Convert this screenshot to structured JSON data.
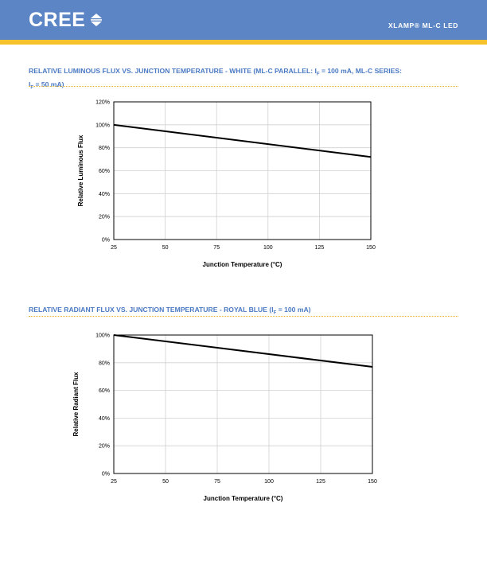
{
  "header": {
    "logo_text": "CREE",
    "product_label": "XLAMP® ML-C LED",
    "colors": {
      "band": "#5b85c5",
      "gold": "#f6c22b",
      "title": "#4a79c3"
    }
  },
  "chart_data": [
    {
      "type": "line",
      "title_parts": [
        "RELATIVE LUMINOUS FLUX VS. JUNCTION TEMPERATURE - WHITE (ML-C PARALLEL: I",
        "F",
        " = 100 mA,  ML-C SERIES:",
        "I",
        "F",
        " = 50 mA)"
      ],
      "xlabel": "Junction Temperature (°C)",
      "ylabel": "Relative Luminous Flux",
      "xlim": [
        25,
        150
      ],
      "ylim": [
        0,
        120
      ],
      "x_ticks": [
        "25",
        "50",
        "75",
        "100",
        "125",
        "150"
      ],
      "y_ticks": [
        "0%",
        "20%",
        "40%",
        "60%",
        "80%",
        "100%",
        "120%"
      ],
      "grid": true,
      "series": [
        {
          "x": [
            25,
            150
          ],
          "y": [
            100,
            72
          ]
        }
      ]
    },
    {
      "type": "line",
      "title_parts": [
        "RELATIVE RADIANT FLUX VS. JUNCTION TEMPERATURE - ROYAL BLUE (I",
        "F",
        " = 100 mA)"
      ],
      "xlabel": "Junction Temperature (°C)",
      "ylabel": "Relative Radiant Flux",
      "xlim": [
        25,
        150
      ],
      "ylim": [
        0,
        100
      ],
      "x_ticks": [
        "25",
        "50",
        "75",
        "100",
        "125",
        "150"
      ],
      "y_ticks": [
        "0%",
        "20%",
        "40%",
        "60%",
        "80%",
        "100%"
      ],
      "grid": true,
      "series": [
        {
          "x": [
            25,
            150
          ],
          "y": [
            100,
            77
          ]
        }
      ]
    }
  ]
}
